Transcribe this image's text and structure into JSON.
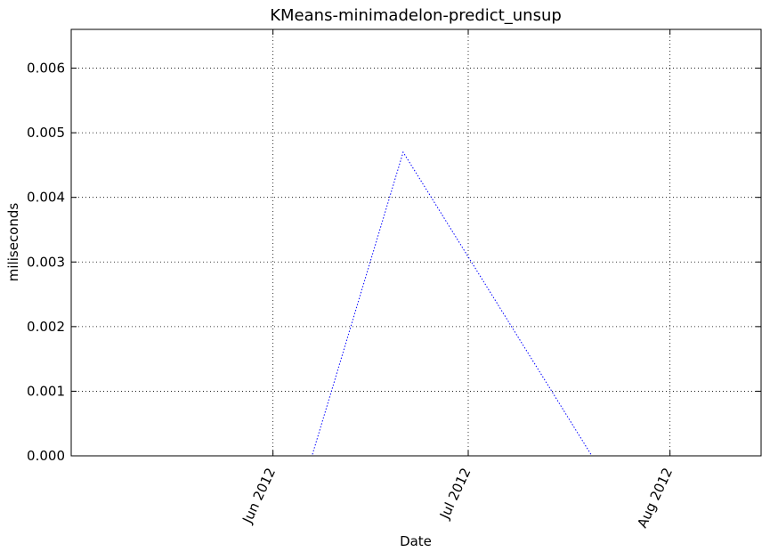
{
  "chart_data": {
    "type": "line",
    "title": "KMeans-minimadelon-predict_unsup",
    "xlabel": "Date",
    "ylabel": "miliseconds",
    "xlim": [
      "2012-05-01",
      "2012-08-15"
    ],
    "ylim": [
      0,
      0.0066
    ],
    "x_ticks": [
      {
        "date": "2012-06-01",
        "label": "Jun 2012"
      },
      {
        "date": "2012-07-01",
        "label": "Jul 2012"
      },
      {
        "date": "2012-08-01",
        "label": "Aug 2012"
      }
    ],
    "y_ticks": [
      {
        "value": 0.0,
        "label": "0.000"
      },
      {
        "value": 0.001,
        "label": "0.001"
      },
      {
        "value": 0.002,
        "label": "0.002"
      },
      {
        "value": 0.003,
        "label": "0.003"
      },
      {
        "value": 0.004,
        "label": "0.004"
      },
      {
        "value": 0.005,
        "label": "0.005"
      },
      {
        "value": 0.006,
        "label": "0.006"
      }
    ],
    "grid": true,
    "series": [
      {
        "color": "#0000ff",
        "line_style": "dotted",
        "x": [
          "2012-06-01",
          "2012-06-07",
          "2012-06-21",
          "2012-07-20",
          "2012-07-23"
        ],
        "y": [
          0.0,
          0.0,
          0.0047,
          0.0,
          0.0
        ]
      }
    ]
  }
}
